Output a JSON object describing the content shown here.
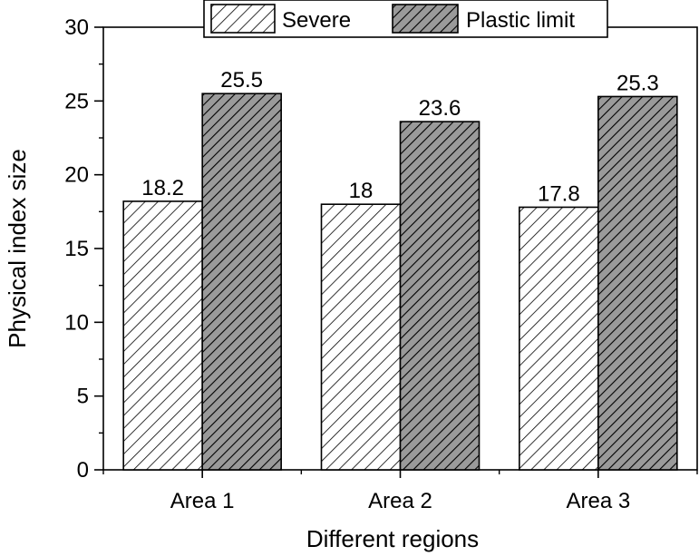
{
  "chart_data": {
    "type": "bar",
    "title": "",
    "xlabel": "Different regions",
    "ylabel": "Physical index size",
    "categories": [
      "Area 1",
      "Area 2",
      "Area 3"
    ],
    "series": [
      {
        "name": "Severe",
        "values": [
          18.2,
          18,
          17.8
        ],
        "labels": [
          "18.2",
          "18",
          "17.8"
        ],
        "fill": "#ffffff",
        "hatch_color": "#000000"
      },
      {
        "name": "Plastic limit",
        "values": [
          25.5,
          23.6,
          25.3
        ],
        "labels": [
          "25.5",
          "23.6",
          "25.3"
        ],
        "fill": "#9a9a9a",
        "hatch_color": "#000000"
      }
    ],
    "ylim": [
      0,
      30
    ],
    "yticks": [
      0,
      5,
      10,
      15,
      20,
      25,
      30
    ],
    "ytick_labels": [
      "0",
      "5",
      "10",
      "15",
      "20",
      "25",
      "30"
    ],
    "grid": false,
    "legend_position": "top"
  }
}
